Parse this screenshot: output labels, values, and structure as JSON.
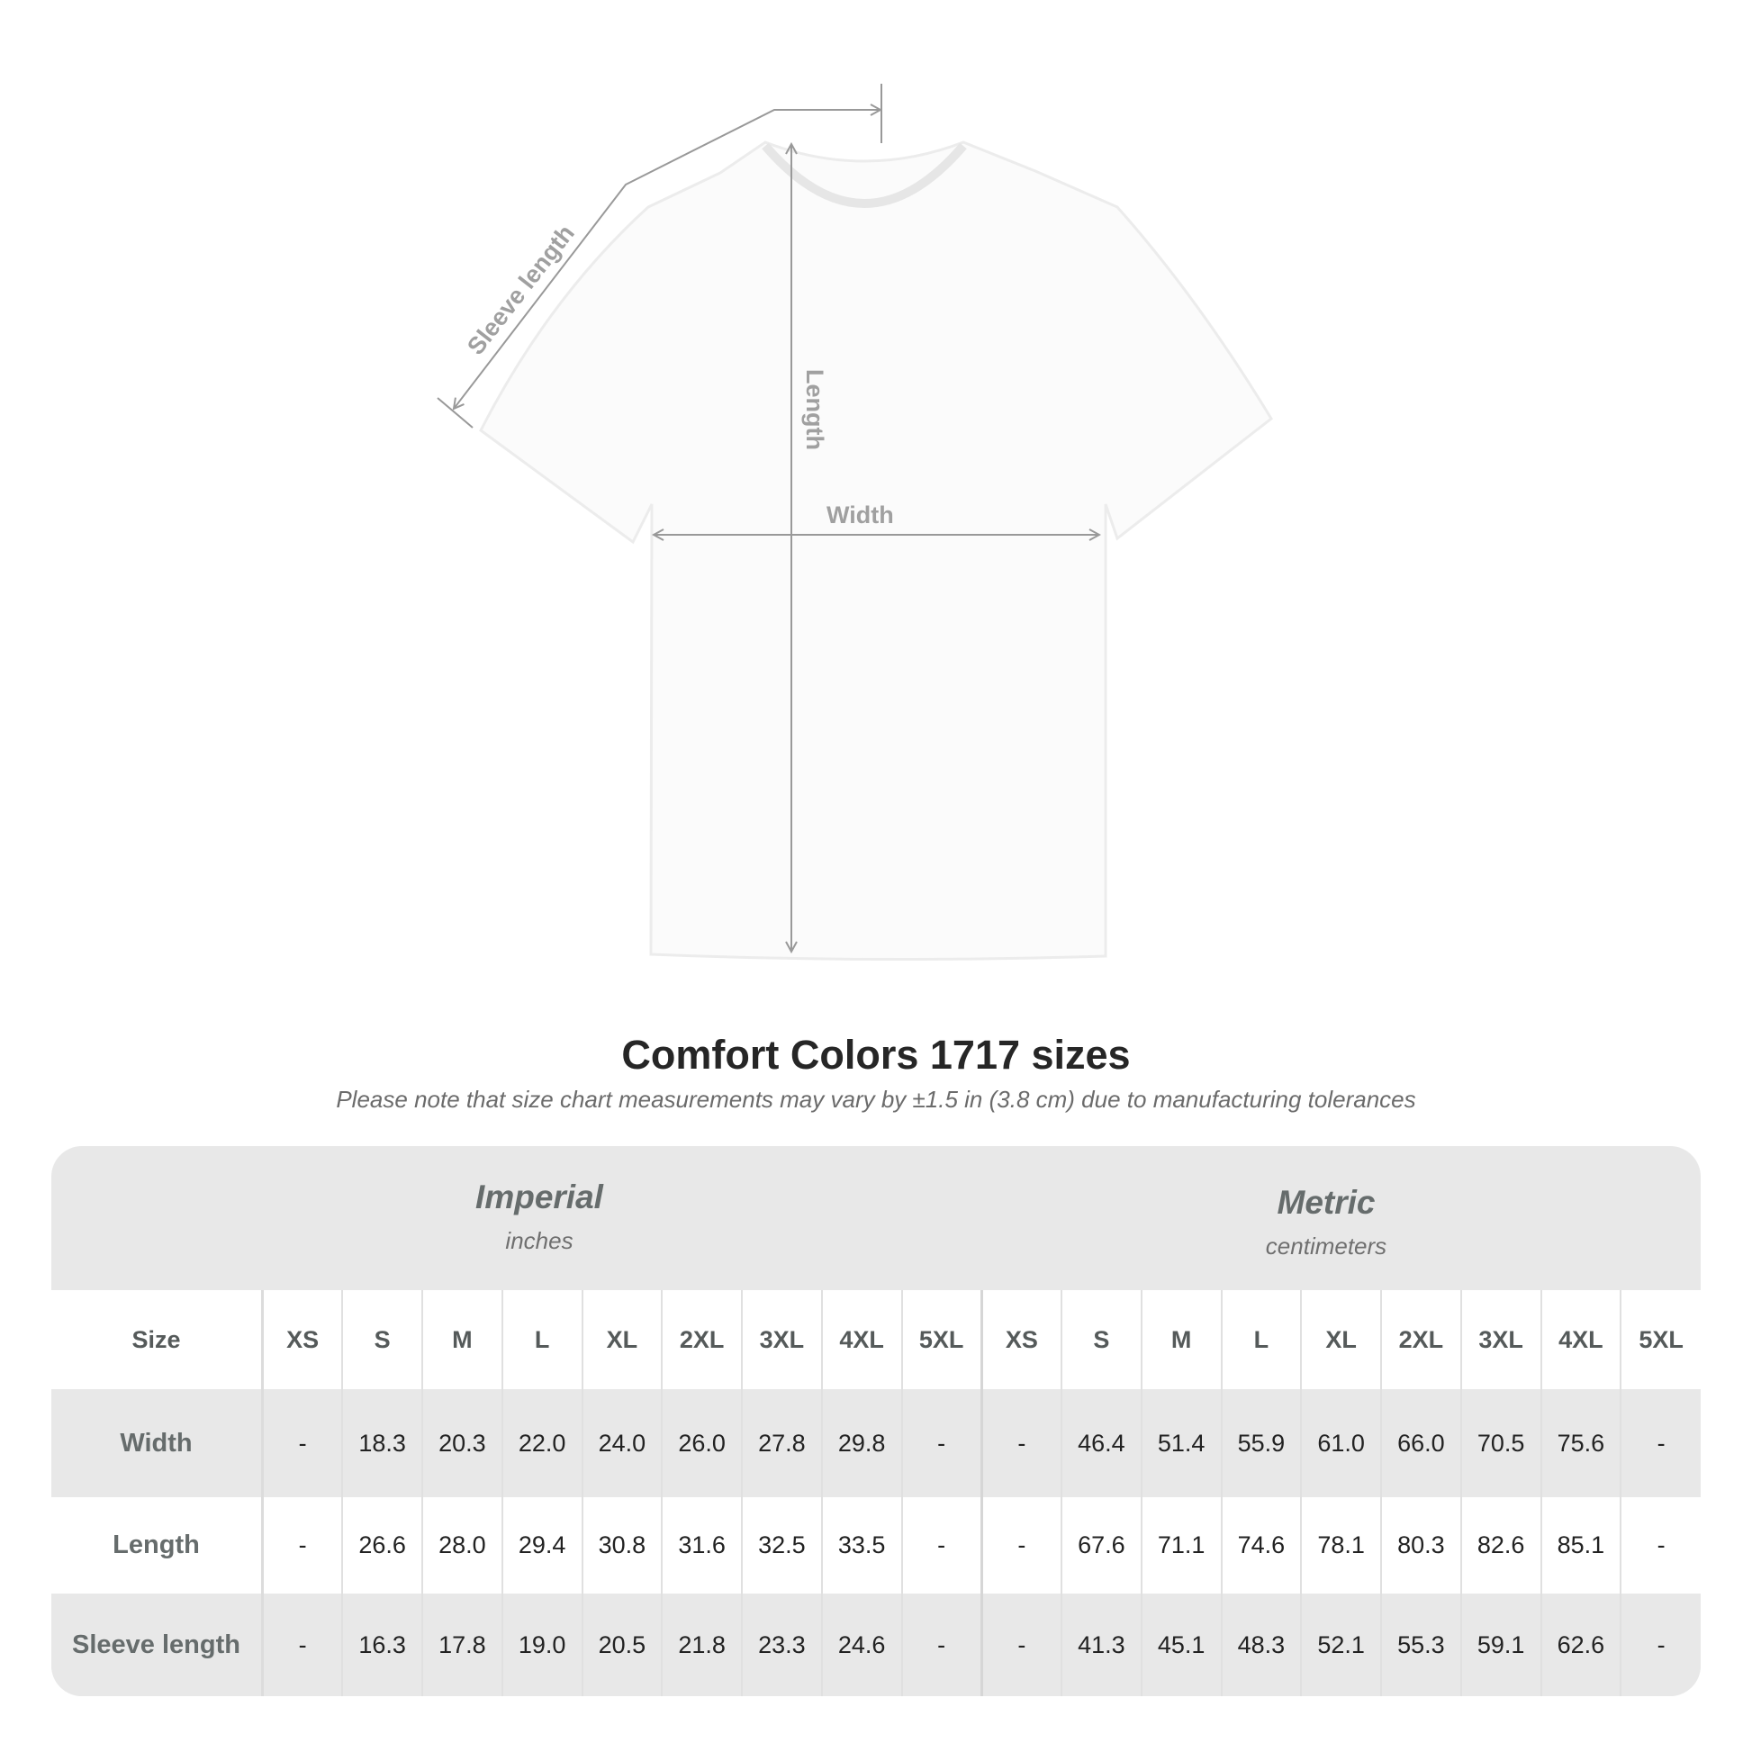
{
  "diagram": {
    "labels": {
      "sleeve": "Sleeve length",
      "length": "Length",
      "width": "Width"
    }
  },
  "title": "Comfort Colors 1717 sizes",
  "note": "Please note that size chart measurements may vary by ±1.5 in (3.8 cm) due to manufacturing tolerances",
  "table": {
    "imperial": {
      "heading": "Imperial",
      "unit": "inches"
    },
    "metric": {
      "heading": "Metric",
      "unit": "centimeters"
    },
    "size_label": "Size",
    "sizes": [
      "XS",
      "S",
      "M",
      "L",
      "XL",
      "2XL",
      "3XL",
      "4XL",
      "5XL"
    ],
    "rows": [
      {
        "label": "Width",
        "imperial": [
          "-",
          "18.3",
          "20.3",
          "22.0",
          "24.0",
          "26.0",
          "27.8",
          "29.8",
          "-"
        ],
        "metric": [
          "-",
          "46.4",
          "51.4",
          "55.9",
          "61.0",
          "66.0",
          "70.5",
          "75.6",
          "-"
        ]
      },
      {
        "label": "Length",
        "imperial": [
          "-",
          "26.6",
          "28.0",
          "29.4",
          "30.8",
          "31.6",
          "32.5",
          "33.5",
          "-"
        ],
        "metric": [
          "-",
          "67.6",
          "71.1",
          "74.6",
          "78.1",
          "80.3",
          "82.6",
          "85.1",
          "-"
        ]
      },
      {
        "label": "Sleeve length",
        "imperial": [
          "-",
          "16.3",
          "17.8",
          "19.0",
          "20.5",
          "21.8",
          "23.3",
          "24.6",
          "-"
        ],
        "metric": [
          "-",
          "41.3",
          "45.1",
          "48.3",
          "52.1",
          "55.3",
          "59.1",
          "62.6",
          "-"
        ]
      }
    ]
  },
  "colors": {
    "background": "#ffffff",
    "table_grey": "#e8e8e8",
    "label_grey": "#666c6c",
    "arrow": "#999999"
  }
}
